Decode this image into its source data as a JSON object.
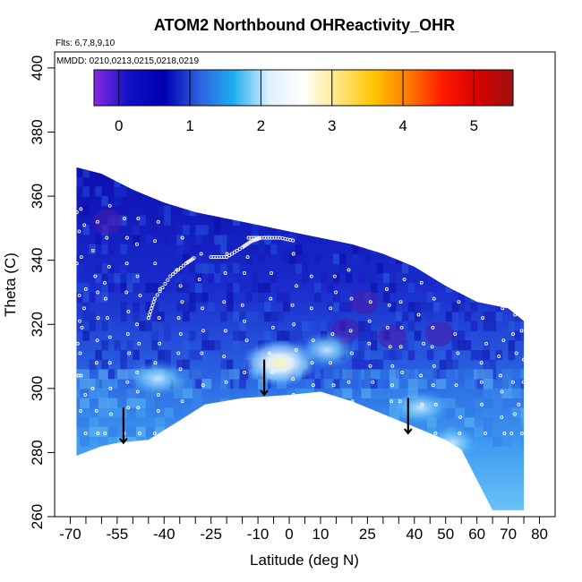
{
  "chart_data": {
    "type": "heatmap",
    "title": "ATOM2 Northbound OHReactivity_OHR",
    "subtitle_flights": "Flts: 6,7,8,9,10",
    "subtitle_dates": "MMDD: 0210,0213,0215,0218,0219",
    "xlabel": "Latitude (deg N)",
    "ylabel": "Theta (C)",
    "xlim": [
      -75,
      85
    ],
    "ylim": [
      260,
      405
    ],
    "x_ticks": [
      -70,
      -55,
      -40,
      -25,
      -10,
      0,
      10,
      25,
      40,
      50,
      60,
      70,
      80
    ],
    "x_minor_ticks": [
      -65,
      -60,
      -50,
      -45,
      -35,
      -30,
      -20,
      -15,
      -5,
      5,
      15,
      20,
      30,
      35,
      45,
      55,
      65,
      75
    ],
    "y_ticks": [
      260,
      280,
      300,
      320,
      340,
      360,
      380,
      400
    ],
    "colorbar": {
      "range": [
        -0.35,
        5.55
      ],
      "ticks": [
        0,
        1,
        2,
        3,
        4,
        5
      ],
      "colors": [
        "#8a2be2",
        "#1010c8",
        "#0000b0",
        "#2d5fe0",
        "#1faef0",
        "#dff0ff",
        "#ffffff",
        "#ffe680",
        "#ffc400",
        "#ff7a00",
        "#ff1a00",
        "#d40000",
        "#a01010"
      ]
    },
    "field_colors": {
      "background": "#1414b8",
      "dark": "#0a0aa0",
      "mid": "#2c5ce0",
      "light": "#5db8f5",
      "pale": "#b8e2ff",
      "peak": "#fff3b0",
      "purple": "#4a1aa8"
    },
    "coverage_top": [
      [
        -68,
        369
      ],
      [
        -60,
        367
      ],
      [
        -50,
        362
      ],
      [
        -40,
        358
      ],
      [
        -30,
        355
      ],
      [
        -20,
        353
      ],
      [
        -10,
        351
      ],
      [
        0,
        349
      ],
      [
        10,
        347
      ],
      [
        20,
        345
      ],
      [
        30,
        342
      ],
      [
        40,
        338
      ],
      [
        50,
        332
      ],
      [
        60,
        327
      ],
      [
        70,
        325
      ],
      [
        75,
        321
      ]
    ],
    "coverage_bottom": [
      [
        -68,
        279
      ],
      [
        -60,
        282
      ],
      [
        -55,
        283
      ],
      [
        -45,
        284
      ],
      [
        -35,
        290
      ],
      [
        -27,
        295
      ],
      [
        -15,
        297
      ],
      [
        0,
        298
      ],
      [
        10,
        299
      ],
      [
        20,
        296
      ],
      [
        30,
        292
      ],
      [
        40,
        288
      ],
      [
        50,
        284
      ],
      [
        55,
        281
      ],
      [
        65,
        262
      ],
      [
        75,
        262
      ]
    ],
    "warm_regions": [
      {
        "lat": -3,
        "theta": 308,
        "level": 3.0
      },
      {
        "lat": 42,
        "theta": 294,
        "level": 2.4
      },
      {
        "lat": 52,
        "theta": 283,
        "level": 2.6
      },
      {
        "lat": -42,
        "theta": 303,
        "level": 1.9
      },
      {
        "lat": 12,
        "theta": 312,
        "level": 1.8
      }
    ],
    "tropopause_arrows": [
      {
        "lat": -53,
        "theta": 287
      },
      {
        "lat": -8,
        "theta": 302
      },
      {
        "lat": 38,
        "theta": 290
      }
    ],
    "flight_tracks": [
      {
        "points": [
          [
            -45,
            322
          ],
          [
            -43,
            328
          ],
          [
            -38,
            335
          ],
          [
            -33,
            339
          ],
          [
            -30,
            341
          ]
        ]
      },
      {
        "points": [
          [
            -25,
            341
          ],
          [
            -20,
            341
          ],
          [
            -15,
            344
          ],
          [
            -12,
            346
          ],
          [
            -9,
            347
          ]
        ]
      },
      {
        "points": [
          [
            -13,
            347
          ],
          [
            -8,
            347
          ],
          [
            -3,
            347
          ],
          [
            2,
            346
          ]
        ]
      }
    ]
  }
}
